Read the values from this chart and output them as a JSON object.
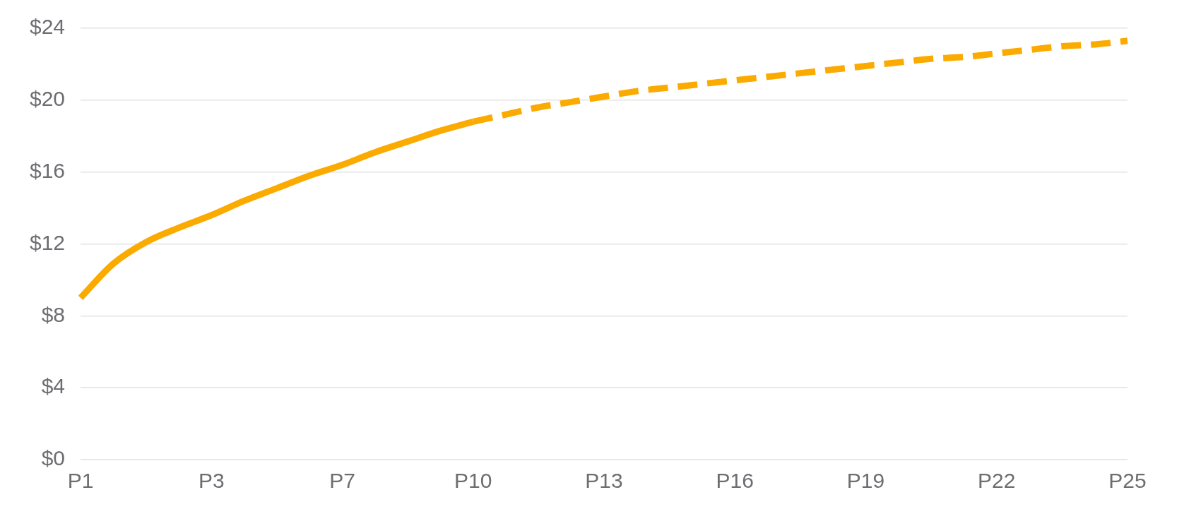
{
  "chart_data": {
    "type": "line",
    "categories": [
      "P1",
      null,
      null,
      null,
      "P3",
      null,
      null,
      null,
      "P7",
      null,
      null,
      null,
      "P10",
      null,
      null,
      null,
      "P13",
      null,
      null,
      null,
      "P16",
      null,
      null,
      null,
      "P19",
      null,
      null,
      null,
      "P22",
      null,
      null,
      null,
      "P25"
    ],
    "series": [
      {
        "color": "#fbab00",
        "line_style": "solid",
        "values": [
          9.0,
          10.9,
          12.1,
          12.9,
          13.6,
          14.4,
          15.1,
          15.8,
          16.4,
          17.1,
          17.7,
          18.3,
          18.8,
          null,
          null,
          null,
          null,
          null,
          null,
          null,
          null,
          null,
          null,
          null,
          null,
          null,
          null,
          null,
          null,
          null,
          null,
          null,
          null
        ]
      },
      {
        "color": "#fbab00",
        "line_style": "dashed",
        "values": [
          null,
          null,
          null,
          null,
          null,
          null,
          null,
          null,
          null,
          null,
          null,
          null,
          18.8,
          19.2,
          19.6,
          19.9,
          20.2,
          20.5,
          20.7,
          20.9,
          21.1,
          21.3,
          21.5,
          21.7,
          21.9,
          22.1,
          22.3,
          22.4,
          22.6,
          22.8,
          23.0,
          23.1,
          23.3
        ]
      }
    ],
    "ylim": [
      0,
      24
    ],
    "yticks": [
      {
        "value": 0,
        "label": "$0"
      },
      {
        "value": 4,
        "label": "$4"
      },
      {
        "value": 8,
        "label": "$8"
      },
      {
        "value": 12,
        "label": "$12"
      },
      {
        "value": 16,
        "label": "$16"
      },
      {
        "value": 20,
        "label": "$20"
      },
      {
        "value": 24,
        "label": "$24"
      }
    ],
    "grid": "y",
    "legend": false,
    "marker": "none"
  }
}
